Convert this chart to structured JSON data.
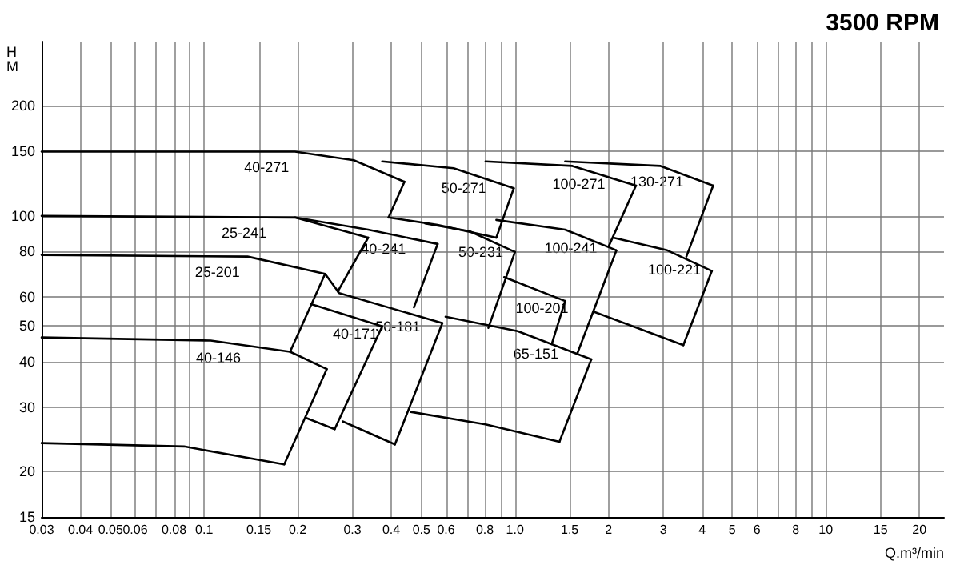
{
  "chart_data": {
    "type": "line",
    "title": "3500 RPM",
    "xlabel": "Q.m³/min",
    "ylabel": "H M",
    "log": "xy",
    "grid": true,
    "marker": "none",
    "line_style": "solid",
    "xlim": [
      0.03,
      24
    ],
    "ylim": [
      15,
      300
    ],
    "xticks": [
      0.03,
      0.04,
      0.05,
      0.06,
      {
        "value": 0.07,
        "label": null
      },
      0.08,
      {
        "value": 0.09,
        "label": null
      },
      0.1,
      0.15,
      0.2,
      0.3,
      0.4,
      0.5,
      0.6,
      {
        "value": 0.7,
        "label": null
      },
      0.8,
      {
        "value": 0.9,
        "label": null
      },
      {
        "value": 1,
        "label": "1.0"
      },
      1.5,
      2,
      3,
      4,
      5,
      6,
      {
        "value": 7,
        "label": null
      },
      8,
      {
        "value": 9,
        "label": null
      },
      10,
      15,
      20
    ],
    "yticks": [
      15,
      20,
      30,
      40,
      50,
      60,
      80,
      100,
      150,
      200
    ],
    "series": [
      {
        "name": "40-271",
        "color": "#000000",
        "x": [
          0.03,
          0.196,
          0.303,
          0.441
        ],
        "values": [
          150,
          150,
          142,
          124
        ]
      },
      {
        "color": "#000000",
        "x": [
          0.392,
          0.441
        ],
        "values": [
          99,
          124
        ]
      },
      {
        "name": "25-241",
        "color": "#000000",
        "x": [
          0.03,
          0.196,
          0.337
        ],
        "values": [
          100,
          99,
          87.2
        ]
      },
      {
        "color": "#000000",
        "x": [
          0.269,
          0.337
        ],
        "values": [
          62.1,
          87.2
        ]
      },
      {
        "name": "25-201",
        "color": "#000000",
        "x": [
          0.03,
          0.138,
          0.245
        ],
        "values": [
          78.2,
          77.4,
          69.4
        ]
      },
      {
        "name": "50-181",
        "color": "#000000",
        "x": [
          0.245,
          0.272,
          0.584
        ],
        "values": [
          69.4,
          61.5,
          50.9
        ]
      },
      {
        "color": "#000000",
        "x": [
          0.189,
          0.245
        ],
        "values": [
          42.5,
          69.4
        ]
      },
      {
        "name": "40-146",
        "color": "#000000",
        "x": [
          0.03,
          0.105,
          0.189,
          0.248
        ],
        "values": [
          46.5,
          45.6,
          42.5,
          38.1
        ]
      },
      {
        "color": "#000000",
        "x": [
          0.181,
          0.248
        ],
        "values": [
          20.9,
          38.1
        ]
      },
      {
        "color": "#000000",
        "x": [
          0.03,
          0.0862,
          0.181
        ],
        "values": [
          23.9,
          23.4,
          20.9
        ]
      },
      {
        "name": "40-171",
        "color": "#000000",
        "x": [
          0.221,
          0.374
        ],
        "values": [
          57.4,
          49.9
        ]
      },
      {
        "color": "#000000",
        "x": [
          0.263,
          0.374
        ],
        "values": [
          26.1,
          49.9
        ]
      },
      {
        "color": "#000000",
        "x": [
          0.213,
          0.263
        ],
        "values": [
          28.0,
          26.1
        ]
      },
      {
        "name": "40-241",
        "color": "#000000",
        "x": [
          0.196,
          0.337,
          0.564
        ],
        "values": [
          99,
          91.7,
          83.8
        ]
      },
      {
        "color": "#000000",
        "x": [
          0.473,
          0.564
        ],
        "values": [
          56.2,
          83.8
        ]
      },
      {
        "color": "#000000",
        "x": [
          0.411,
          0.584
        ],
        "values": [
          23.7,
          50.9
        ]
      },
      {
        "color": "#000000",
        "x": [
          0.279,
          0.411
        ],
        "values": [
          27.4,
          23.7
        ]
      },
      {
        "name": "50-271",
        "color": "#000000",
        "x": [
          0.374,
          0.635,
          0.991
        ],
        "values": [
          141,
          135,
          119
        ]
      },
      {
        "color": "#000000",
        "x": [
          0.871,
          0.991
        ],
        "values": [
          87.2,
          119
        ]
      },
      {
        "color": "#000000",
        "x": [
          0.392,
          0.564,
          0.871
        ],
        "values": [
          99,
          94.5,
          87.2
        ]
      },
      {
        "name": "50-231",
        "color": "#000000",
        "x": [
          0.514,
          0.715,
          1.0
        ],
        "values": [
          95.4,
          90.8,
          79.7
        ]
      },
      {
        "color": "#000000",
        "x": [
          0.821,
          1.0
        ],
        "values": [
          49.4,
          79.7
        ]
      },
      {
        "name": "65-151",
        "color": "#000000",
        "x": [
          0.598,
          1.02,
          1.76
        ],
        "values": [
          53.0,
          48.4,
          40.5
        ]
      },
      {
        "color": "#000000",
        "x": [
          1.39,
          1.76
        ],
        "values": [
          24.1,
          40.5
        ]
      },
      {
        "color": "#000000",
        "x": [
          0.462,
          0.804,
          1.39
        ],
        "values": [
          29.1,
          26.9,
          24.1
        ]
      },
      {
        "name": "100-201",
        "color": "#000000",
        "x": [
          0.923,
          1.45
        ],
        "values": [
          68.0,
          58.5
        ]
      },
      {
        "color": "#000000",
        "x": [
          1.313,
          1.45
        ],
        "values": [
          44.6,
          58.5
        ]
      },
      {
        "name": "100-241",
        "color": "#000000",
        "x": [
          0.871,
          1.45,
          2.12
        ],
        "values": [
          97.5,
          91.7,
          80.5
        ]
      },
      {
        "color": "#000000",
        "x": [
          1.585,
          2.12
        ],
        "values": [
          41.9,
          80.5
        ]
      },
      {
        "name": "100-271",
        "color": "#000000",
        "x": [
          0.804,
          1.53,
          2.45
        ],
        "values": [
          141,
          137,
          121
        ]
      },
      {
        "color": "#000000",
        "x": [
          2.0,
          2.45
        ],
        "values": [
          82.4,
          121
        ]
      },
      {
        "name": "130-271",
        "color": "#000000",
        "x": [
          1.45,
          2.94,
          4.34
        ],
        "values": [
          141,
          137,
          121
        ]
      },
      {
        "color": "#000000",
        "x": [
          3.56,
          4.34
        ],
        "values": [
          77.4,
          121
        ]
      },
      {
        "name": "100-221",
        "color": "#000000",
        "x": [
          2.07,
          3.09,
          4.3
        ],
        "values": [
          87.2,
          80.5,
          70.7
        ]
      },
      {
        "color": "#000000",
        "x": [
          3.48,
          4.3
        ],
        "values": [
          44.3,
          70.7
        ]
      },
      {
        "color": "#000000",
        "x": [
          1.8,
          3.48
        ],
        "values": [
          54.6,
          44.3
        ]
      }
    ]
  }
}
